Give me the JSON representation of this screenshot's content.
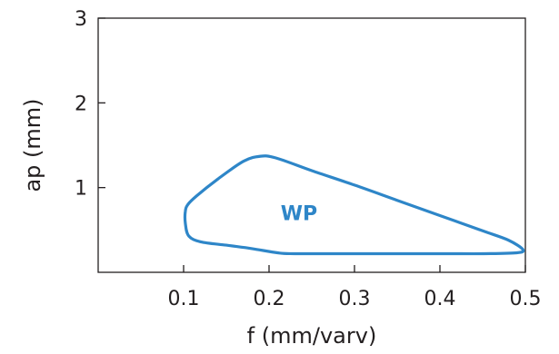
{
  "chart_data": {
    "type": "line",
    "title": "",
    "xlabel": "f (mm/varv)",
    "ylabel": "ap (mm)",
    "xlim": [
      0,
      0.5
    ],
    "ylim": [
      0,
      3
    ],
    "x_ticks": [
      0.1,
      0.2,
      0.3,
      0.4,
      0.5
    ],
    "y_ticks": [
      1,
      2,
      3
    ],
    "x_tick_labels": [
      "0.1",
      "0.2",
      "0.3",
      "0.4",
      "0.5"
    ],
    "y_tick_labels": [
      "1",
      "2",
      "3"
    ],
    "grid": false,
    "series": [
      {
        "label": "WP",
        "color": "#2e86c8",
        "closed": true,
        "x": [
          0.102,
          0.105,
          0.115,
          0.14,
          0.17,
          0.19,
          0.208,
          0.25,
          0.3,
          0.35,
          0.4,
          0.45,
          0.48,
          0.497,
          0.49,
          0.45,
          0.4,
          0.3,
          0.23,
          0.21,
          0.18,
          0.15,
          0.12,
          0.106,
          0.102
        ],
        "y": [
          0.72,
          0.8,
          0.9,
          1.1,
          1.31,
          1.37,
          1.35,
          1.2,
          1.03,
          0.85,
          0.67,
          0.49,
          0.38,
          0.27,
          0.23,
          0.22,
          0.22,
          0.22,
          0.22,
          0.23,
          0.28,
          0.32,
          0.36,
          0.43,
          0.58
        ]
      }
    ],
    "annotations": [
      {
        "text": "WP",
        "x": 0.235,
        "y": 0.7,
        "color": "#2e86c8"
      }
    ]
  }
}
